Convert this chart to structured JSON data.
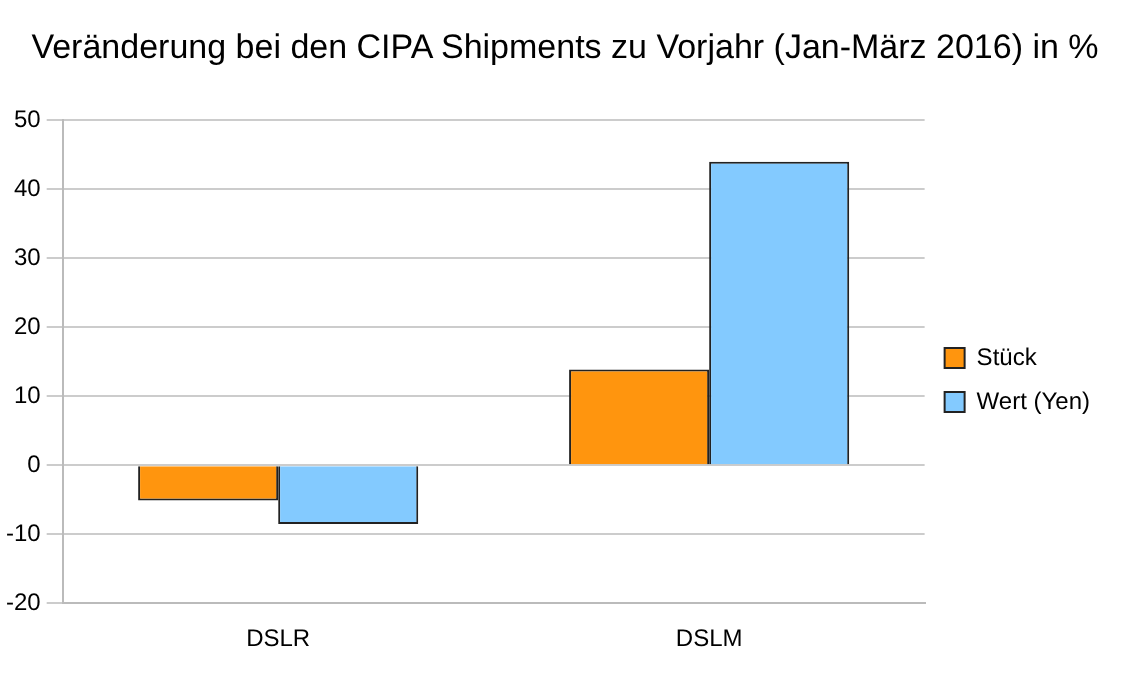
{
  "chart_data": {
    "type": "bar",
    "title": "Veränderung bei den CIPA Shipments zu Vorjahr (Jan-März 2016) in %",
    "categories": [
      "DSLR",
      "DSLM"
    ],
    "series": [
      {
        "name": "Stück",
        "color": "#ff950e",
        "values": [
          -5.1,
          13.9
        ]
      },
      {
        "name": "Wert (Yen)",
        "color": "#83caff",
        "values": [
          -8.5,
          44
        ]
      }
    ],
    "ylim": [
      -20,
      50
    ],
    "yticks": [
      -20,
      -10,
      0,
      10,
      20,
      30,
      40,
      50
    ],
    "grid": "y",
    "legend": "right"
  }
}
